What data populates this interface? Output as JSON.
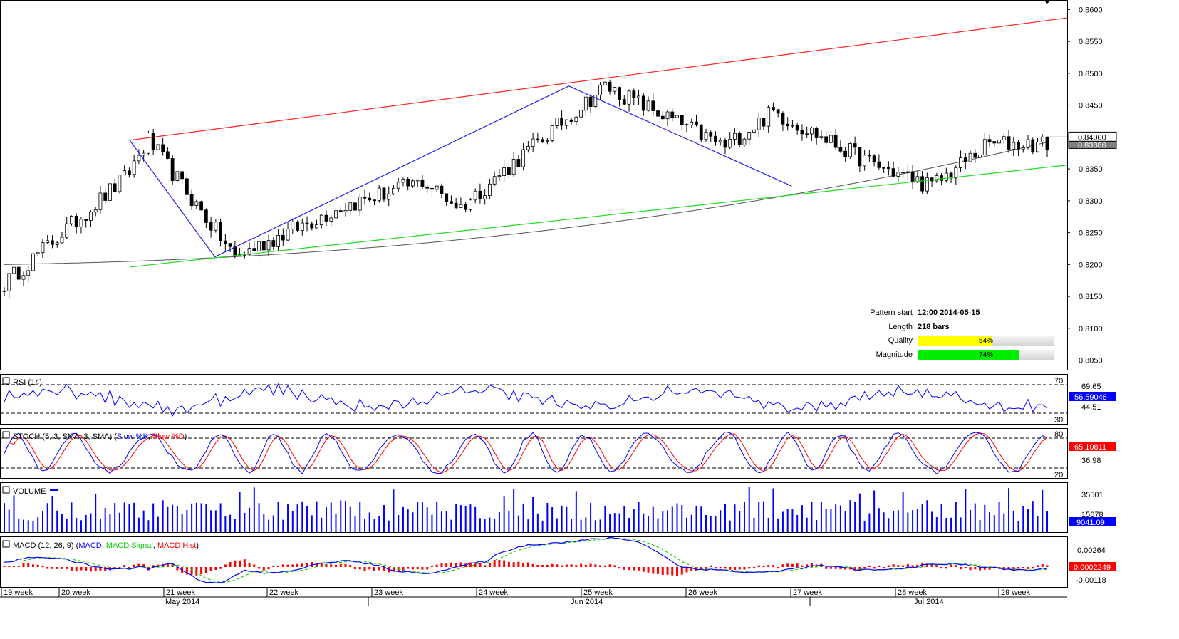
{
  "chart_data": {
    "type": "candlestick",
    "main": {
      "y_ticks": [
        "0.8600",
        "0.8550",
        "0.8500",
        "0.8450",
        "0.8400",
        "0.8350",
        "0.8300",
        "0.8250",
        "0.8200",
        "0.8150",
        "0.8100",
        "0.8050"
      ],
      "ylim": [
        0.8035,
        0.8615
      ],
      "price_tags": [
        "0.84000",
        "0.83886"
      ],
      "close_start": 0.817,
      "close_end": 0.8389,
      "patterns": [
        {
          "name": "resistance",
          "color": "#ff2020",
          "points": [
            [
              0,
              0.8395
            ],
            [
              143,
              0.8587
            ]
          ]
        },
        {
          "name": "support",
          "color": "#20dd20",
          "points": [
            [
              0,
              0.8196
            ],
            [
              143,
              0.8356
            ]
          ]
        }
      ],
      "zigzag": [
        [
          0,
          0.8395
        ],
        [
          13,
          0.8212
        ],
        [
          67,
          0.848
        ],
        [
          101,
          0.8323
        ]
      ],
      "ma_start": 0.82,
      "ma_end": 0.8392
    },
    "info_panel": {
      "pattern_start_label": "Pattern start",
      "pattern_start_value": "12:00 2014-05-15",
      "length_label": "Length",
      "length_value": "218 bars",
      "quality_label": "Quality",
      "quality_value": 54,
      "quality_text": "54%",
      "quality_color": "#ffff00",
      "magnitude_label": "Magnitude",
      "magnitude_value": 74,
      "magnitude_text": "74%",
      "magnitude_color": "#00ee00"
    },
    "rsi": {
      "label": "RSI (14)",
      "levels": [
        "70",
        "30"
      ],
      "scale_labels": [
        "69.65",
        "44.51"
      ],
      "current": "56.59046",
      "color": "#0000ff"
    },
    "stoch": {
      "label_prefix": "STOCH (5, 3, SMA, 3, SMA) (",
      "k_label": "Slow %K",
      "sep": ", ",
      "d_label": "Slow %D",
      "suffix": ")",
      "levels": [
        "80",
        "20"
      ],
      "scale_labels": [
        "36.98"
      ],
      "current": "65.10811",
      "k_color": "#0000ff",
      "d_color": "#ff0000"
    },
    "volume": {
      "label": "VOLUME",
      "scale_labels": [
        "35501",
        "15678"
      ],
      "current": "9041.09",
      "color": "#0000ff"
    },
    "macd": {
      "label_prefix": "MACD (12, 26, 9) (",
      "macd_label": "MACD",
      "signal_label": "MACD Signal",
      "hist_label": "MACD Hist",
      "suffix": ")",
      "scale_labels": [
        "0.00264",
        "-0.00118"
      ],
      "current": "0.0002249",
      "macd_color": "#0000ff",
      "signal_color": "#00cc00",
      "hist_color": "#ff0000"
    },
    "x_axis": {
      "weeks": [
        "19 week",
        "20 week",
        "21 week",
        "22 week",
        "23 week",
        "24 week",
        "25 week",
        "26 week",
        "27 week",
        "28 week",
        "29 week"
      ],
      "months": [
        "May 2014",
        "Jun 2014",
        "Jul 2014"
      ]
    }
  }
}
